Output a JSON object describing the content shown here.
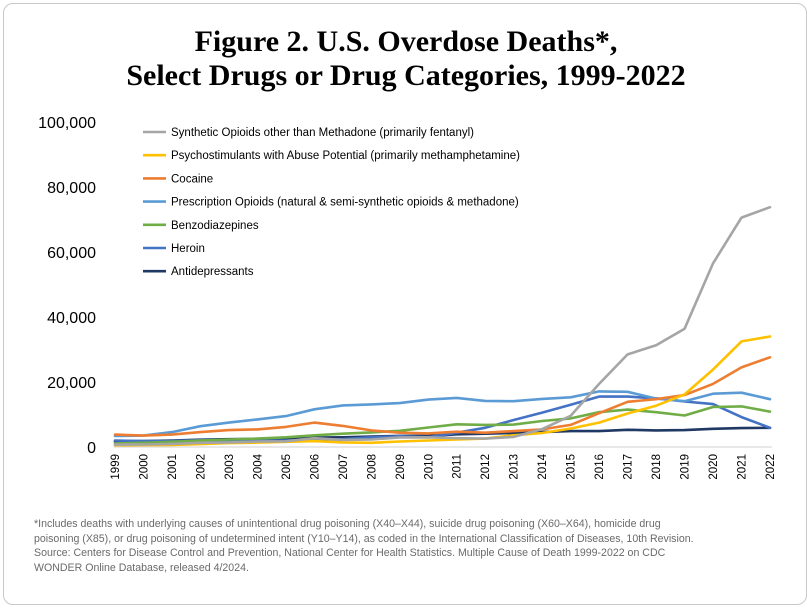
{
  "title_line1": "Figure 2. U.S. Overdose Deaths*,",
  "title_line2": "Select Drugs or Drug Categories, 1999-2022",
  "footnote_lines": [
    "*Includes deaths with underlying causes of unintentional drug poisoning (X40–X44), suicide drug poisoning (X60–X64), homicide drug",
    "poisoning (X85), or drug poisoning of undetermined intent (Y10–Y14), as coded in the International Classification of Diseases, 10th Revision.",
    "Source: Centers for Disease Control and Prevention, National Center for Health Statistics. Multiple Cause of Death 1999-2022 on CDC",
    "WONDER Online Database, released 4/2024."
  ],
  "chart_data": {
    "type": "line",
    "title": "Figure 2. U.S. Overdose Deaths*, Select Drugs or Drug Categories, 1999-2022",
    "xlabel": "",
    "ylabel": "",
    "ylim": [
      0,
      100000
    ],
    "yticks": [
      0,
      20000,
      40000,
      60000,
      80000,
      100000
    ],
    "ytick_labels": [
      "0",
      "20,000",
      "40,000",
      "60,000",
      "80,000",
      "100,000"
    ],
    "grid": false,
    "legend_position": "top-left",
    "x": [
      "1999",
      "2000",
      "2001",
      "2002",
      "2003",
      "2004",
      "2005",
      "2006",
      "2007",
      "2008",
      "2009",
      "2010",
      "2011",
      "2012",
      "2013",
      "2014",
      "2015",
      "2016",
      "2017",
      "2018",
      "2019",
      "2020",
      "2021",
      "2022"
    ],
    "series": [
      {
        "name": "Synthetic Opioids other than Methadone (primarily fentanyl)",
        "color": "#a5a5a5",
        "values": [
          730,
          780,
          960,
          1300,
          1400,
          1660,
          1740,
          2700,
          2200,
          2300,
          2950,
          3000,
          2700,
          2600,
          3100,
          5500,
          9600,
          19400,
          28500,
          31300,
          36400,
          56500,
          70600,
          73800
        ]
      },
      {
        "name": "Psychostimulants with Abuse Potential (primarily methamphetamine)",
        "color": "#ffc000",
        "values": [
          550,
          580,
          660,
          900,
          1200,
          1350,
          1600,
          1800,
          1400,
          1300,
          1700,
          2000,
          2300,
          2600,
          3600,
          4300,
          5700,
          7500,
          10300,
          12700,
          16200,
          23800,
          32500,
          34000
        ]
      },
      {
        "name": "Cocaine",
        "color": "#ed7d31",
        "values": [
          3800,
          3500,
          3800,
          4600,
          5200,
          5400,
          6200,
          7500,
          6500,
          5100,
          4400,
          4200,
          4700,
          4400,
          4900,
          5400,
          6800,
          10400,
          13900,
          14700,
          16000,
          19400,
          24500,
          27600
        ]
      },
      {
        "name": "Prescription Opioids (natural & semi-synthetic opioids & methadone)",
        "color": "#5b9bd5",
        "values": [
          3400,
          3500,
          4600,
          6400,
          7500,
          8500,
          9500,
          11600,
          12800,
          13100,
          13500,
          14600,
          15100,
          14200,
          14100,
          14800,
          15300,
          17100,
          17000,
          14900,
          14100,
          16400,
          16700,
          14700
        ]
      },
      {
        "name": "Benzodiazepines",
        "color": "#70ad47",
        "values": [
          1100,
          1300,
          1600,
          2000,
          2300,
          2600,
          3000,
          3600,
          4100,
          4500,
          5000,
          6000,
          7000,
          6800,
          6900,
          8000,
          8800,
          10700,
          11500,
          10700,
          9700,
          12300,
          12500,
          10900
        ]
      },
      {
        "name": "Heroin",
        "color": "#4472c4",
        "values": [
          2000,
          1800,
          1800,
          2100,
          2100,
          1900,
          2000,
          2100,
          2400,
          3000,
          3300,
          3000,
          4400,
          5900,
          8300,
          10600,
          13000,
          15500,
          15500,
          15000,
          14000,
          13200,
          9200,
          5900
        ]
      },
      {
        "name": "Antidepressants",
        "color": "#203864",
        "values": [
          1750,
          1850,
          2000,
          2250,
          2400,
          2500,
          2700,
          2900,
          3000,
          3200,
          3400,
          3400,
          3900,
          4100,
          4300,
          4600,
          4900,
          4900,
          5300,
          5100,
          5200,
          5600,
          5800,
          5900
        ]
      }
    ]
  }
}
